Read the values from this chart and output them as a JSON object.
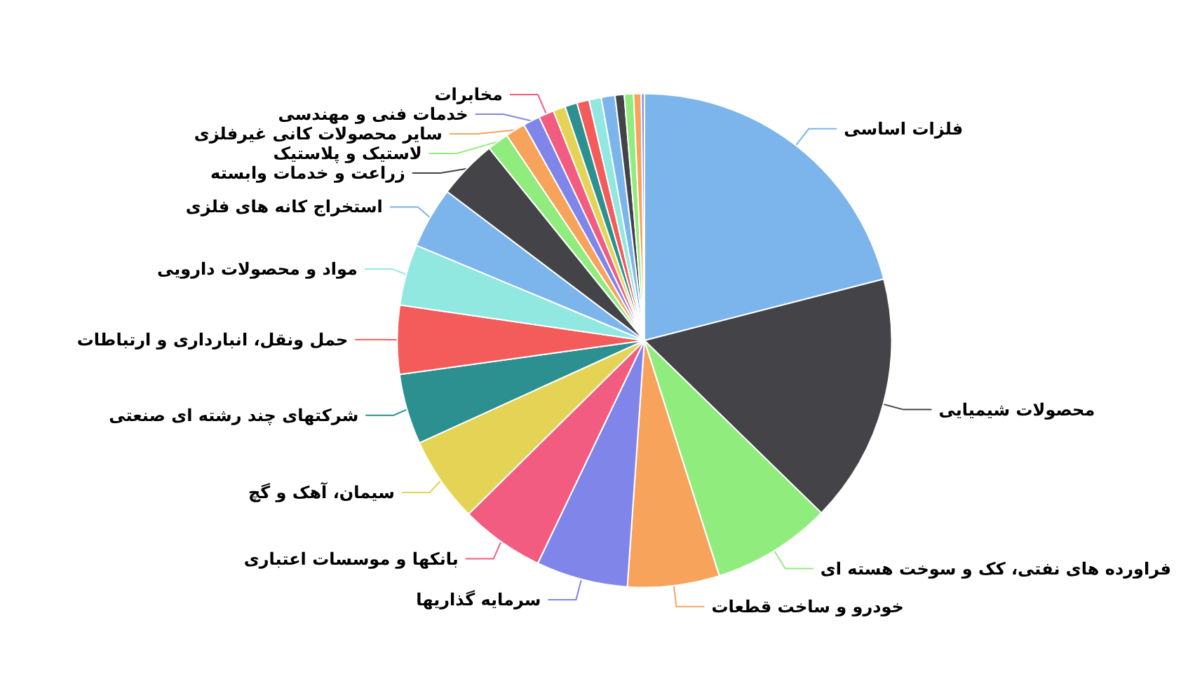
{
  "chart_data": {
    "type": "pie",
    "categories": [
      "فلزات اساسی",
      "محصولات شیمیایی",
      "فراورده های نفتی، کک و سوخت هسته ای",
      "خودرو و ساخت قطعات",
      "سرمایه گذاریها",
      "بانکها و موسسات اعتباری",
      "سیمان، آهک و گچ",
      "شرکتهای چند رشته ای صنعتی",
      "حمل ونقل، انبارداری و ارتباطات",
      "مواد و محصولات دارویی",
      "استخراج کانه های فلزی",
      "زراعت و خدمات وابسته",
      "لاستیک و پلاستیک",
      "سایر محصولات کانی غیرفلزی",
      "خدمات فنی و مهندسی",
      "مخابرات",
      null,
      null,
      null,
      null,
      null,
      null,
      null,
      null,
      null
    ],
    "values": [
      21.0,
      16.3,
      7.8,
      6.0,
      6.0,
      5.5,
      5.6,
      4.6,
      4.5,
      4.0,
      4.0,
      3.9,
      1.4,
      1.3,
      1.1,
      1.0,
      0.8,
      0.8,
      0.8,
      0.8,
      0.9,
      0.6,
      0.6,
      0.5,
      0.2
    ],
    "colors": [
      "#7cb5ec",
      "#434348",
      "#90ed7d",
      "#f7a35c",
      "#8085e9",
      "#f15c80",
      "#e4d354",
      "#2b908f",
      "#f45b5b",
      "#91e8e1",
      "#7cb5ec",
      "#434348",
      "#90ed7d",
      "#f7a35c",
      "#8085e9",
      "#f15c80",
      "#e4d354",
      "#2b908f",
      "#f45b5b",
      "#91e8e1",
      "#7cb5ec",
      "#434348",
      "#90ed7d",
      "#f7a35c",
      "#8085e9"
    ]
  }
}
